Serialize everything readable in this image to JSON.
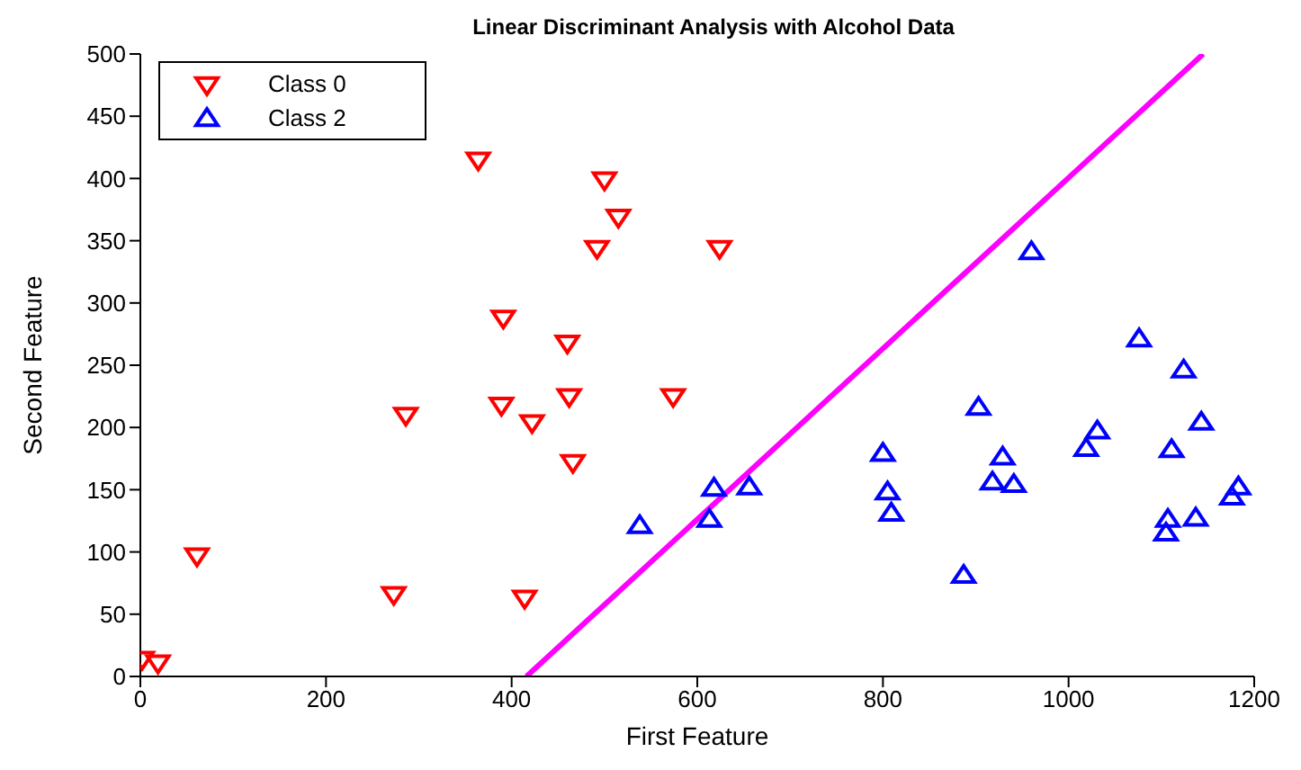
{
  "chart_data": {
    "type": "scatter",
    "title": "Linear Discriminant Analysis with Alcohol Data",
    "xlabel": "First Feature",
    "ylabel": "Second Feature",
    "xlim": [
      0,
      1200
    ],
    "xticks": [
      0,
      200,
      400,
      600,
      800,
      1000,
      1200
    ],
    "ylim": [
      0,
      500
    ],
    "yticks": [
      0,
      50,
      100,
      150,
      200,
      250,
      300,
      350,
      400,
      450,
      500
    ],
    "grid": false,
    "legend": "top left",
    "series": [
      {
        "name": "Class 0",
        "color": "#ff0000",
        "marker": "triangle-down",
        "x": [
          2,
          19,
          61,
          286,
          273,
          414,
          364,
          391,
          389,
          422,
          460,
          462,
          466,
          500,
          515,
          492,
          624,
          574
        ],
        "values": [
          14,
          11,
          97,
          210,
          66,
          63,
          415,
          288,
          218,
          204,
          268,
          225,
          172,
          399,
          369,
          344,
          344,
          225
        ]
      },
      {
        "name": "Class 2",
        "color": "#0000ff",
        "marker": "triangle",
        "x": [
          538,
          618,
          613,
          656,
          800,
          805,
          809,
          887,
          903,
          929,
          918,
          941,
          960,
          1076,
          1031,
          1019,
          1124,
          1143,
          1111,
          1107,
          1105,
          1137,
          1183,
          1176
        ],
        "values": [
          121,
          151,
          126,
          152,
          179,
          148,
          131,
          81,
          216,
          176,
          156,
          154,
          341,
          271,
          197,
          183,
          246,
          204,
          182,
          126,
          115,
          127,
          152,
          144
        ]
      },
      {
        "type": "line",
        "color": "#ff00ff",
        "x": [
          416,
          1145
        ],
        "values": [
          0,
          500
        ]
      }
    ]
  }
}
